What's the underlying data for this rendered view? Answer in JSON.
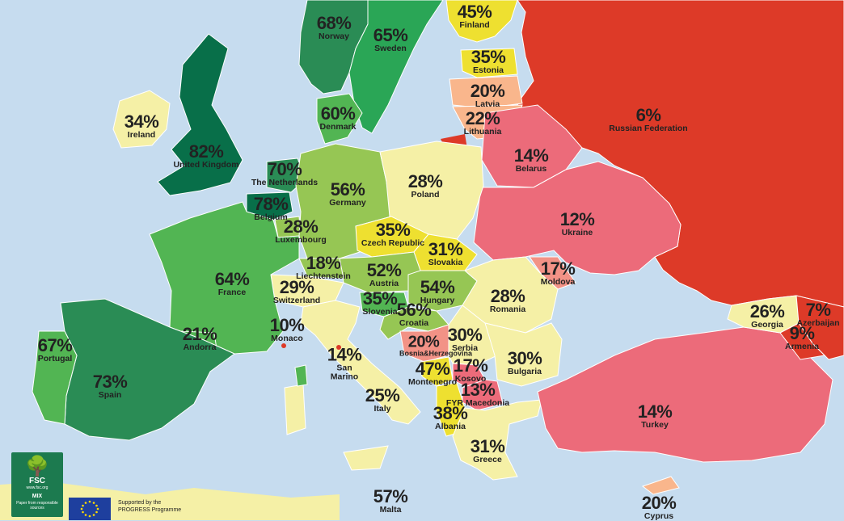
{
  "legend_colors": {
    "sea": "#c6dcef",
    "non_reporting": "#f5f0a6",
    "very_high": "#086f49",
    "high": "#2aa656",
    "medium_high": "#52b553",
    "medium": "#96c654",
    "medium_low": "#eee030",
    "low_orange": "#f9b68c",
    "low_pink": "#ec6b7a",
    "very_low": "#dd3a28",
    "salmon": "#f29286"
  },
  "countries": [
    {
      "id": "norway",
      "pct": "68%",
      "name": "Norway"
    },
    {
      "id": "sweden",
      "pct": "65%",
      "name": "Sweden"
    },
    {
      "id": "finland",
      "pct": "45%",
      "name": "Finland"
    },
    {
      "id": "estonia",
      "pct": "35%",
      "name": "Estonia"
    },
    {
      "id": "latvia",
      "pct": "20%",
      "name": "Latvia"
    },
    {
      "id": "lithuania",
      "pct": "22%",
      "name": "Lithuania"
    },
    {
      "id": "russia",
      "pct": "6%",
      "name": "Russian Federation"
    },
    {
      "id": "ireland",
      "pct": "34%",
      "name": "Ireland"
    },
    {
      "id": "uk",
      "pct": "82%",
      "name": "United Kingdom"
    },
    {
      "id": "denmark",
      "pct": "60%",
      "name": "Denmark"
    },
    {
      "id": "belarus",
      "pct": "14%",
      "name": "Belarus"
    },
    {
      "id": "netherlands",
      "pct": "70%",
      "name": "The Netherlands"
    },
    {
      "id": "germany",
      "pct": "56%",
      "name": "Germany"
    },
    {
      "id": "poland",
      "pct": "28%",
      "name": "Poland"
    },
    {
      "id": "belgium",
      "pct": "78%",
      "name": "Belgium"
    },
    {
      "id": "luxembourg",
      "pct": "28%",
      "name": "Luxembourg"
    },
    {
      "id": "czech",
      "pct": "35%",
      "name": "Czech Republic"
    },
    {
      "id": "ukraine",
      "pct": "12%",
      "name": "Ukraine"
    },
    {
      "id": "slovakia",
      "pct": "31%",
      "name": "Slovakia"
    },
    {
      "id": "liechtenstein",
      "pct": "18%",
      "name": "Liechtenstein"
    },
    {
      "id": "austria",
      "pct": "52%",
      "name": "Austria"
    },
    {
      "id": "moldova",
      "pct": "17%",
      "name": "Moldova"
    },
    {
      "id": "france",
      "pct": "64%",
      "name": "France"
    },
    {
      "id": "switzerland",
      "pct": "29%",
      "name": "Switzerland"
    },
    {
      "id": "hungary",
      "pct": "54%",
      "name": "Hungary"
    },
    {
      "id": "slovenia",
      "pct": "35%",
      "name": "Slovenia"
    },
    {
      "id": "romania",
      "pct": "28%",
      "name": "Romania"
    },
    {
      "id": "croatia",
      "pct": "56%",
      "name": "Croatia"
    },
    {
      "id": "georgia",
      "pct": "26%",
      "name": "Georgia"
    },
    {
      "id": "azerbaijan",
      "pct": "7%",
      "name": "Azerbaijan"
    },
    {
      "id": "portugal",
      "pct": "67%",
      "name": "Portugal"
    },
    {
      "id": "andorra",
      "pct": "21%",
      "name": "Andorra"
    },
    {
      "id": "monaco",
      "pct": "10%",
      "name": "Monaco"
    },
    {
      "id": "bosnia",
      "pct": "20%",
      "name": "Bosnia&Herzegovina"
    },
    {
      "id": "serbia",
      "pct": "30%",
      "name": "Serbia"
    },
    {
      "id": "armenia",
      "pct": "9%",
      "name": "Armenia"
    },
    {
      "id": "san_marino",
      "pct": "14%",
      "name": "San Marino"
    },
    {
      "id": "montenegro",
      "pct": "47%",
      "name": "Montenegro"
    },
    {
      "id": "kosovo",
      "pct": "17%",
      "name": "Kosovo"
    },
    {
      "id": "bulgaria",
      "pct": "30%",
      "name": "Bulgaria"
    },
    {
      "id": "spain",
      "pct": "73%",
      "name": "Spain"
    },
    {
      "id": "macedonia",
      "pct": "13%",
      "name": "FYR Macedonia"
    },
    {
      "id": "italy",
      "pct": "25%",
      "name": "Italy"
    },
    {
      "id": "albania",
      "pct": "38%",
      "name": "Albania"
    },
    {
      "id": "turkey",
      "pct": "14%",
      "name": "Turkey"
    },
    {
      "id": "greece",
      "pct": "31%",
      "name": "Greece"
    },
    {
      "id": "malta",
      "pct": "57%",
      "name": "Malta"
    },
    {
      "id": "cyprus",
      "pct": "20%",
      "name": "Cyprus"
    }
  ],
  "fsc": {
    "title": "FSC",
    "sub": "www.fsc.org",
    "mix": "MIX",
    "desc": "Paper from responsible sources"
  },
  "eu": {
    "line1": "Supported by the",
    "line2": "PROGRESS Programme"
  }
}
